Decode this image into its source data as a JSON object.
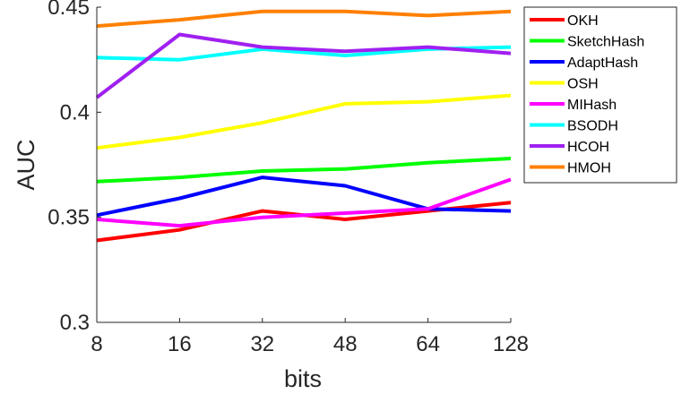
{
  "chart_data": {
    "type": "line",
    "title": "",
    "xlabel": "bits",
    "ylabel": "AUC",
    "categories": [
      "8",
      "16",
      "32",
      "48",
      "64",
      "128"
    ],
    "ylim": [
      0.3,
      0.45
    ],
    "yticks": [
      "0.3",
      "0.35",
      "0.4",
      "0.45"
    ],
    "grid": false,
    "legend_position": "top-right outside",
    "series": [
      {
        "name": "OKH",
        "color": "#ff0000",
        "values": [
          0.339,
          0.344,
          0.353,
          0.349,
          0.353,
          0.357
        ]
      },
      {
        "name": "SketchHash",
        "color": "#00ff00",
        "values": [
          0.367,
          0.369,
          0.372,
          0.373,
          0.376,
          0.378
        ]
      },
      {
        "name": "AdaptHash",
        "color": "#0000ff",
        "values": [
          0.351,
          0.359,
          0.369,
          0.365,
          0.354,
          0.353
        ]
      },
      {
        "name": "OSH",
        "color": "#ffff00",
        "values": [
          0.383,
          0.388,
          0.395,
          0.404,
          0.405,
          0.408
        ]
      },
      {
        "name": "MIHash",
        "color": "#ff00ff",
        "values": [
          0.349,
          0.346,
          0.35,
          0.352,
          0.354,
          0.368
        ]
      },
      {
        "name": "BSODH",
        "color": "#00ffff",
        "values": [
          0.426,
          0.425,
          0.43,
          0.427,
          0.43,
          0.431
        ]
      },
      {
        "name": "HCOH",
        "color": "#a020f0",
        "values": [
          0.407,
          0.437,
          0.431,
          0.429,
          0.431,
          0.428
        ]
      },
      {
        "name": "HMOH",
        "color": "#ff8000",
        "values": [
          0.441,
          0.444,
          0.448,
          0.448,
          0.446,
          0.448
        ]
      }
    ]
  }
}
